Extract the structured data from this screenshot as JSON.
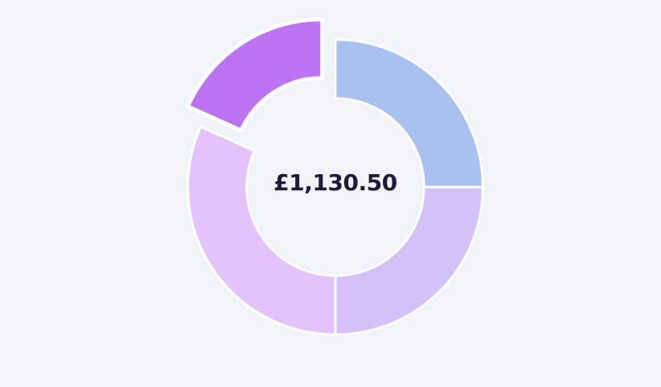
{
  "chart_data": {
    "type": "donut",
    "center_label": "£1,130.50",
    "values": [
      282.63,
      282.62,
      358.4,
      206.85
    ],
    "colors": [
      "#a9c1ef",
      "#d4c1f8",
      "#e3c3f9",
      "#bd74f2"
    ],
    "exploded_index": 3,
    "legend": "none"
  }
}
